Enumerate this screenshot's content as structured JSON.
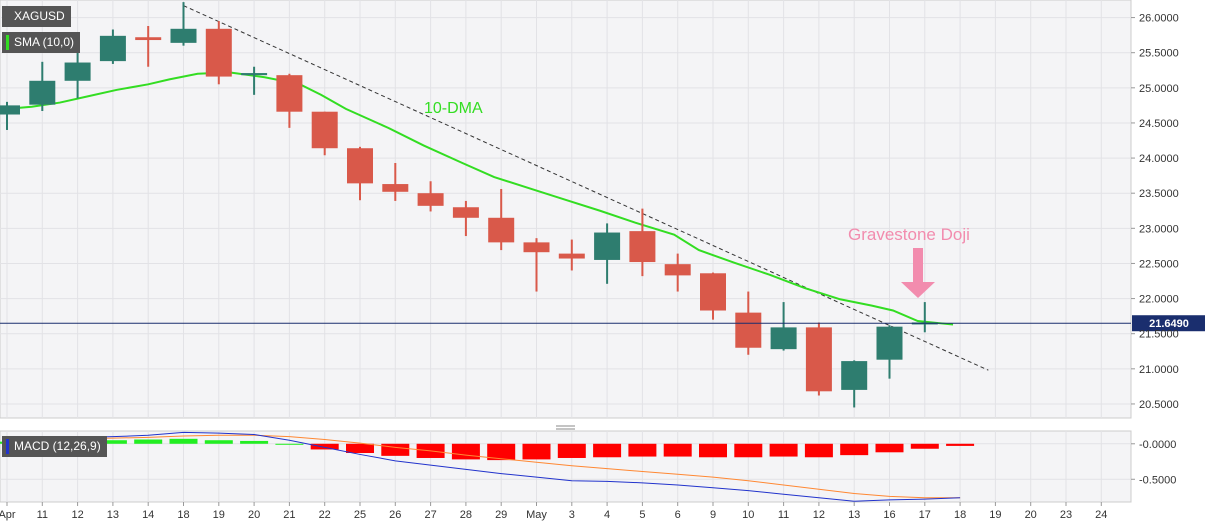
{
  "legends": {
    "symbol": "XAGUSD",
    "sma": "SMA (10,0)",
    "macd": "MACD (12,26,9)"
  },
  "colors": {
    "bull": "#2e7d6f",
    "bear": "#d9594a",
    "sma": "#33dd22",
    "macd_line": "#2233cc",
    "signal_line": "#ff8833",
    "hist_pos": "#22ee22",
    "hist_neg": "#ff0000",
    "price_line": "#1a2e6e",
    "annotation": "#f28cae"
  },
  "chart_data": [
    {
      "type": "candlestick",
      "title": "",
      "yticks": [
        "20.5000",
        "21.0000",
        "21.5000",
        "22.0000",
        "22.5000",
        "23.0000",
        "23.5000",
        "24.0000",
        "24.5000",
        "25.0000",
        "25.5000",
        "26.0000"
      ],
      "ylim": [
        20.3,
        26.25
      ],
      "xticks": [
        "Apr",
        "11",
        "12",
        "13",
        "14",
        "18",
        "19",
        "20",
        "21",
        "22",
        "25",
        "26",
        "27",
        "28",
        "29",
        "May",
        "3",
        "4",
        "5",
        "6",
        "9",
        "10",
        "11",
        "12",
        "13",
        "16",
        "17",
        "18",
        "19",
        "20",
        "23",
        "24"
      ],
      "candles": [
        {
          "d": "8",
          "o": 24.62,
          "h": 24.8,
          "l": 24.4,
          "c": 24.75
        },
        {
          "d": "11",
          "o": 24.76,
          "h": 25.37,
          "l": 24.67,
          "c": 25.1
        },
        {
          "d": "12",
          "o": 25.1,
          "h": 25.63,
          "l": 24.85,
          "c": 25.36
        },
        {
          "d": "13",
          "o": 25.38,
          "h": 25.83,
          "l": 25.34,
          "c": 25.74
        },
        {
          "d": "14",
          "o": 25.72,
          "h": 25.88,
          "l": 25.3,
          "c": 25.68
        },
        {
          "d": "18",
          "o": 25.64,
          "h": 26.22,
          "l": 25.6,
          "c": 25.84
        },
        {
          "d": "19",
          "o": 25.84,
          "h": 25.95,
          "l": 25.05,
          "c": 25.16
        },
        {
          "d": "20",
          "o": 25.18,
          "h": 25.3,
          "l": 24.9,
          "c": 25.21
        },
        {
          "d": "21",
          "o": 25.18,
          "h": 25.2,
          "l": 24.43,
          "c": 24.66
        },
        {
          "d": "22",
          "o": 24.66,
          "h": 24.66,
          "l": 24.04,
          "c": 24.14
        },
        {
          "d": "25",
          "o": 24.14,
          "h": 24.16,
          "l": 23.4,
          "c": 23.64
        },
        {
          "d": "26",
          "o": 23.63,
          "h": 23.93,
          "l": 23.39,
          "c": 23.52
        },
        {
          "d": "27",
          "o": 23.5,
          "h": 23.67,
          "l": 23.24,
          "c": 23.32
        },
        {
          "d": "28",
          "o": 23.3,
          "h": 23.39,
          "l": 22.89,
          "c": 23.15
        },
        {
          "d": "29",
          "o": 23.15,
          "h": 23.56,
          "l": 22.69,
          "c": 22.8
        },
        {
          "d": "May",
          "o": 22.8,
          "h": 22.86,
          "l": 22.1,
          "c": 22.66
        },
        {
          "d": "3",
          "o": 22.64,
          "h": 22.84,
          "l": 22.4,
          "c": 22.57
        },
        {
          "d": "4",
          "o": 22.55,
          "h": 23.07,
          "l": 22.21,
          "c": 22.94
        },
        {
          "d": "5",
          "o": 22.96,
          "h": 23.28,
          "l": 22.32,
          "c": 22.52
        },
        {
          "d": "6",
          "o": 22.49,
          "h": 22.64,
          "l": 22.1,
          "c": 22.33
        },
        {
          "d": "9",
          "o": 22.36,
          "h": 22.37,
          "l": 21.7,
          "c": 21.83
        },
        {
          "d": "10",
          "o": 21.8,
          "h": 22.1,
          "l": 21.2,
          "c": 21.3
        },
        {
          "d": "11",
          "o": 21.28,
          "h": 21.95,
          "l": 21.26,
          "c": 21.59
        },
        {
          "d": "12",
          "o": 21.59,
          "h": 21.66,
          "l": 20.62,
          "c": 20.68
        },
        {
          "d": "13",
          "o": 20.7,
          "h": 21.12,
          "l": 20.45,
          "c": 21.11
        },
        {
          "d": "16",
          "o": 21.13,
          "h": 21.62,
          "l": 20.86,
          "c": 21.6
        },
        {
          "d": "17",
          "o": 21.66,
          "h": 21.95,
          "l": 21.52,
          "c": 21.66
        }
      ],
      "sma": [
        24.7,
        24.73,
        24.79,
        24.88,
        24.97,
        25.05,
        25.12,
        25.2,
        25.22,
        25.15,
        25.05,
        24.9,
        24.7,
        24.43,
        24.18,
        23.93,
        23.73,
        23.57,
        23.41,
        23.25,
        23.08,
        22.91,
        22.69,
        22.51,
        22.34,
        22.15,
        21.99,
        21.9,
        21.83,
        21.68,
        21.63
      ],
      "sma_x": [
        0,
        0.7,
        1.5,
        2.3,
        3.1,
        4.0,
        4.6,
        5.4,
        6.3,
        7.3,
        8.3,
        8.9,
        9.6,
        10.8,
        11.8,
        12.9,
        13.8,
        14.8,
        15.8,
        16.8,
        17.8,
        18.9,
        19.6,
        20.6,
        21.6,
        22.6,
        23.6,
        24.5,
        25.1,
        25.8,
        26.8
      ],
      "trendline": {
        "from": {
          "i": 5,
          "v": 26.17
        },
        "to": {
          "i": 27.8,
          "v": 20.98
        }
      },
      "current_price": "21.6490",
      "current_price_value": 21.649,
      "annotations": {
        "dma_label": "10-DMA",
        "doji_label": "Gravestone Doji"
      }
    },
    {
      "type": "macd",
      "yticks": [
        "-0.0000",
        "-0.5000"
      ],
      "ylim": [
        -0.82,
        0.18
      ],
      "histogram": [
        0.03,
        0.04,
        0.05,
        0.05,
        0.06,
        0.07,
        0.05,
        0.04,
        0.0,
        -0.08,
        -0.13,
        -0.17,
        -0.2,
        -0.22,
        -0.23,
        -0.22,
        -0.2,
        -0.19,
        -0.18,
        -0.18,
        -0.19,
        -0.19,
        -0.18,
        -0.19,
        -0.16,
        -0.12,
        -0.07,
        -0.03
      ],
      "macd": [
        0.08,
        0.08,
        0.09,
        0.1,
        0.12,
        0.16,
        0.15,
        0.13,
        0.05,
        -0.05,
        -0.15,
        -0.24,
        -0.3,
        -0.36,
        -0.42,
        -0.47,
        -0.52,
        -0.53,
        -0.55,
        -0.58,
        -0.62,
        -0.66,
        -0.71,
        -0.76,
        -0.81,
        -0.79,
        -0.78,
        -0.76
      ],
      "signal": [
        0.05,
        0.06,
        0.07,
        0.08,
        0.09,
        0.11,
        0.12,
        0.12,
        0.1,
        0.06,
        0.01,
        -0.05,
        -0.1,
        -0.16,
        -0.21,
        -0.26,
        -0.31,
        -0.35,
        -0.39,
        -0.43,
        -0.47,
        -0.52,
        -0.58,
        -0.64,
        -0.7,
        -0.74,
        -0.76,
        -0.76
      ]
    }
  ]
}
